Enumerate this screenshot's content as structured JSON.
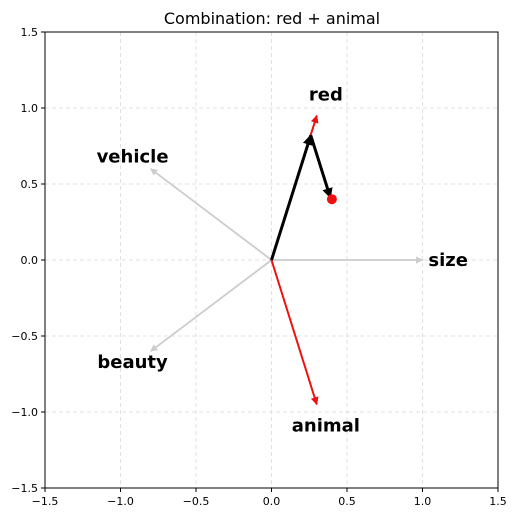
{
  "chart_data": {
    "type": "vector-plot",
    "title": "Combination: red + animal",
    "xlim": [
      -1.5,
      1.5
    ],
    "ylim": [
      -1.5,
      1.5
    ],
    "xticks": [
      -1.5,
      -1.0,
      -0.5,
      0.0,
      0.5,
      1.0,
      1.5
    ],
    "yticks": [
      -1.5,
      -1.0,
      -0.5,
      0.0,
      0.5,
      1.0,
      1.5
    ],
    "xtick_labels": [
      "−1.5",
      "−1.0",
      "−0.5",
      "0.0",
      "0.5",
      "1.0",
      "1.5"
    ],
    "ytick_labels": [
      "−1.5",
      "−1.0",
      "−0.5",
      "0.0",
      "0.5",
      "1.0",
      "1.5"
    ],
    "grid": true,
    "colors": {
      "highlight": "#ee1111",
      "background_vector": "#cccccc",
      "combination": "#000000",
      "result_point": "#ee1111",
      "grid": "#d9d9d9"
    },
    "vectors": [
      {
        "label": "size",
        "x": 1.0,
        "y": 0.0,
        "highlighted": false,
        "label_x": 1.17,
        "label_y": 0.0
      },
      {
        "label": "vehicle",
        "x": -0.8,
        "y": 0.6,
        "highlighted": false,
        "label_x": -0.92,
        "label_y": 0.68
      },
      {
        "label": "beauty",
        "x": -0.8,
        "y": -0.6,
        "highlighted": false,
        "label_x": -0.92,
        "label_y": -0.67
      },
      {
        "label": "red",
        "x": 0.3,
        "y": 0.95,
        "highlighted": true,
        "label_x": 0.36,
        "label_y": 1.09
      },
      {
        "label": "animal",
        "x": 0.3,
        "y": -0.95,
        "highlighted": true,
        "label_x": 0.36,
        "label_y": -1.09
      }
    ],
    "combination_path": [
      {
        "x": 0.0,
        "y": 0.0
      },
      {
        "x": 0.26,
        "y": 0.82
      },
      {
        "x": 0.39,
        "y": 0.41
      }
    ],
    "result_point": {
      "x": 0.4,
      "y": 0.4
    }
  }
}
